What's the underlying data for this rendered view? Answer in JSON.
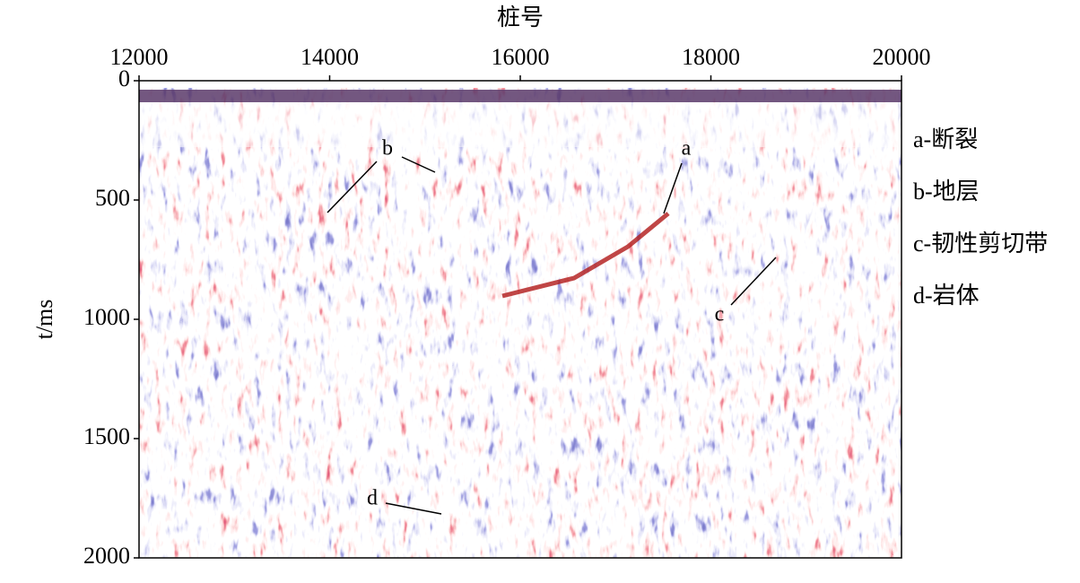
{
  "chart_data": {
    "type": "seismic-section",
    "xlabel": "桩号",
    "ylabel": "t/ms",
    "xlim": [
      12000,
      20000
    ],
    "xticks": [
      12000,
      14000,
      16000,
      18000,
      20000
    ],
    "ylim": [
      0,
      2000
    ],
    "yticks": [
      0,
      500,
      1000,
      1500,
      2000
    ],
    "annotations": [
      "a",
      "b",
      "c",
      "d"
    ],
    "legend": [
      "a-断裂",
      "b-地层",
      "c-韧性剪切带",
      "d-岩体"
    ]
  }
}
